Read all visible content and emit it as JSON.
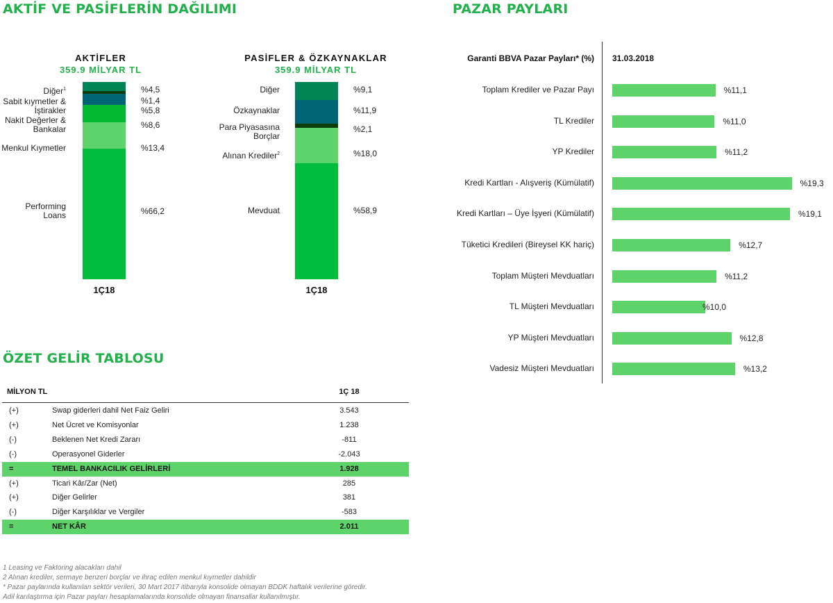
{
  "titles": {
    "assets_liabilities": "AKTİF VE PASİFLERİN DAĞILIMI",
    "market_share": "PAZAR PAYLARI",
    "income": "ÖZET GELİR TABLOSU"
  },
  "colors": {
    "accent_green": "#22b04b",
    "bar_green": "#5dd36a",
    "dark_green": "#008556",
    "teal": "#016474",
    "very_dark_green": "#0d3b0a",
    "bright_green": "#00b935",
    "light_green": "#5dd36a",
    "main_green": "#00bc3c"
  },
  "chart_data": [
    {
      "type": "bar",
      "stacked": true,
      "title": "AKTİFLER",
      "subtitle": "359.9 MİLYAR TL",
      "categories": [
        "1Ç18"
      ],
      "series": [
        {
          "name": "Diğer",
          "sup": "1",
          "value": 4.5,
          "value_label": "%4,5",
          "color": "#008556"
        },
        {
          "name": "Sabit kıymetler & İştirakler",
          "value": 1.4,
          "value_label": "%1,4",
          "color": "#0d3b0a"
        },
        {
          "name": "",
          "value": 5.8,
          "value_label": "%5,8",
          "color": "#016474"
        },
        {
          "name": "Nakit Değerler & Bankalar",
          "value": 8.6,
          "value_label": "%8,6",
          "color": "#00b935"
        },
        {
          "name": "Menkul Kıymetler",
          "value": 13.4,
          "value_label": "%13,4",
          "color": "#5dd36a"
        },
        {
          "name": "Performing Loans",
          "value": 66.2,
          "value_label": "%66,2",
          "color": "#00bc3c"
        }
      ]
    },
    {
      "type": "bar",
      "stacked": true,
      "title": "PASİFLER & ÖZKAYNAKLAR",
      "subtitle": "359.9 MİLYAR TL",
      "categories": [
        "1Ç18"
      ],
      "series": [
        {
          "name": "Diğer",
          "value": 9.1,
          "value_label": "%9,1",
          "color": "#008556"
        },
        {
          "name": "Özkaynaklar",
          "value": 11.9,
          "value_label": "%11,9",
          "color": "#016474"
        },
        {
          "name": "Para Piyasasına Borçlar",
          "value": 2.1,
          "value_label": "%2,1",
          "color": "#0d3b0a"
        },
        {
          "name": "Alınan Krediler",
          "sup": "2",
          "value": 18.0,
          "value_label": "%18,0",
          "color": "#5dd36a"
        },
        {
          "name": "Mevduat",
          "value": 58.9,
          "value_label": "%58,9",
          "color": "#00bc3c"
        }
      ]
    },
    {
      "type": "bar",
      "orientation": "horizontal",
      "title": "PAZAR PAYLARI",
      "header_label": "Garanti BBVA Pazar Payları* (%)",
      "header_date": "31.03.2018",
      "categories": [
        "Toplam Krediler ve Pazar Payı",
        "TL Krediler",
        "YP Krediler",
        "Kredi Kartları - Alışveriş (Kümülatif)",
        "Kredi Kartları – Üye İşyeri (Kümülatif)",
        "Tüketici Kredileri (Bireysel KK hariç)",
        "Toplam Müşteri Mevduatları",
        "TL Müşteri Mevduatları",
        "YP Müşteri Mevduatları",
        "Vadesiz Müşteri Mevduatları"
      ],
      "values": [
        11.1,
        11.0,
        11.2,
        19.3,
        19.1,
        12.7,
        11.2,
        10.0,
        12.8,
        13.2
      ],
      "value_labels": [
        "%11,1",
        "%11,0",
        "%11,2",
        "%19,3",
        "%19,1",
        "%12,7",
        "%11,2",
        "%10,0",
        "%12,8",
        "%13,2"
      ]
    }
  ],
  "income_table": {
    "header_label": "MİLYON TL",
    "header_period": "1Ç 18",
    "rows": [
      {
        "sign": "(+)",
        "name": "Swap giderleri dahil Net Faiz Geliri",
        "value": "3.543",
        "highlight": false
      },
      {
        "sign": "(+)",
        "name": "Net Ücret ve Komisyonlar",
        "value": "1.238",
        "highlight": false
      },
      {
        "sign": "(-)",
        "name": "Beklenen Net Kredi Zararı",
        "value": "-811",
        "highlight": false
      },
      {
        "sign": "(-)",
        "name": "Operasyonel Giderler",
        "value": "-2.043",
        "highlight": false
      },
      {
        "sign": "=",
        "name": "TEMEL BANKACILIK GELİRLERİ",
        "value": "1.928",
        "highlight": true
      },
      {
        "sign": "(+)",
        "name": "Ticari Kâr/Zar (Net)",
        "value": "285",
        "highlight": false
      },
      {
        "sign": "(+)",
        "name": "Diğer Gelirler",
        "value": "381",
        "highlight": false
      },
      {
        "sign": "(-)",
        "name": "Diğer Karşılıklar ve Vergiler",
        "value": "-583",
        "highlight": false
      },
      {
        "sign": "=",
        "name": "NET KÂR",
        "value": "2.011",
        "highlight": true
      }
    ]
  },
  "footnotes": [
    "1 Leasing ve Faktoring alacakları dahil",
    "2 Alınan krediler, sermaye benzeri borçlar ve ihraç edilen menkul kıymetler dahildir",
    "* Pazar paylarında kullanılan sektör verileri, 30 Mart 2017 itibarıyla konsolide olmayan BDDK haftalık verilerine göredir.",
    "Adil karılaştırma için Pazar payları hesaplamalarında konsolide olmayan finansallar kullanılmıştır."
  ]
}
